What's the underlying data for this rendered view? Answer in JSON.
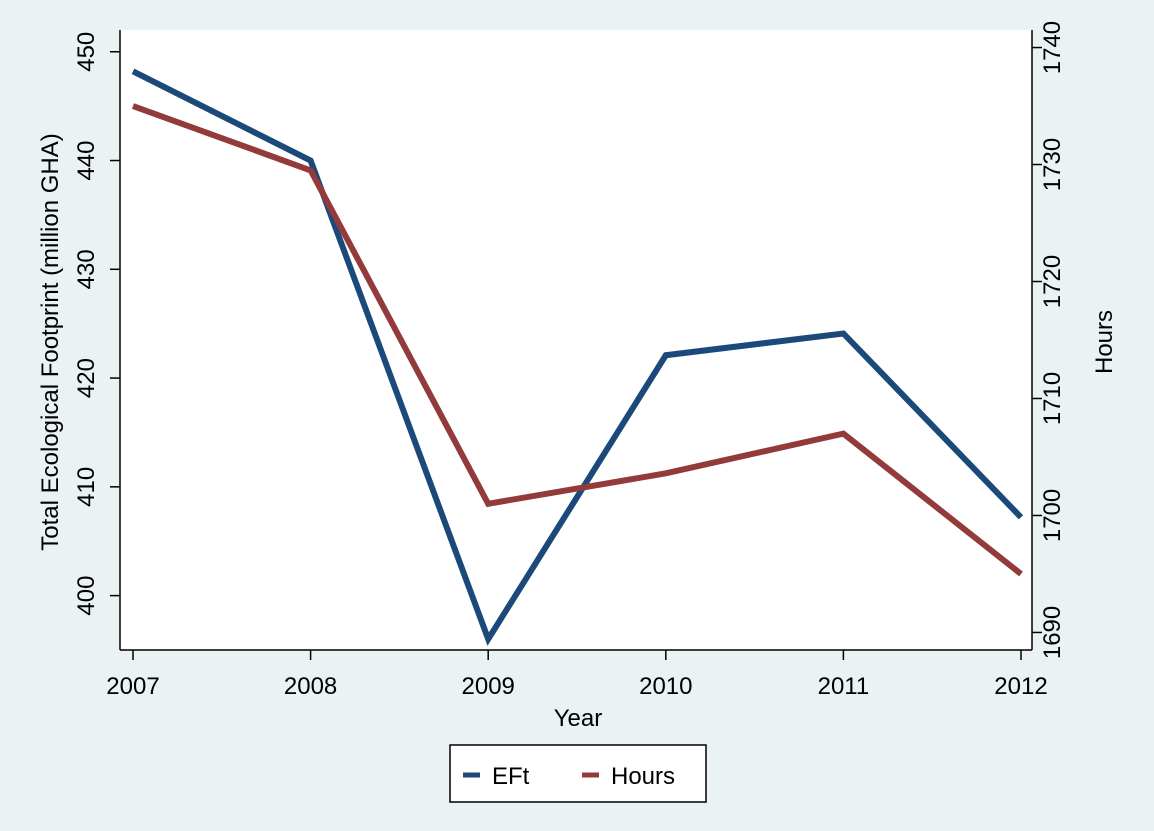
{
  "chart_data": {
    "type": "line",
    "x": [
      2007,
      2008,
      2009,
      2010,
      2011,
      2012
    ],
    "xlabel": "Year",
    "ylabel_left": "Total Ecological Footprint (million GHA)",
    "ylabel_right": "Hours",
    "xlim": [
      2007,
      2012
    ],
    "ylim_left": [
      395,
      452
    ],
    "ylim_right": [
      1688.5,
      1741.5
    ],
    "yticks_left": [
      400,
      410,
      420,
      430,
      440,
      450
    ],
    "yticks_right": [
      1690,
      1700,
      1710,
      1720,
      1730,
      1740
    ],
    "grid": false,
    "legend_position": "bottom",
    "series": [
      {
        "name": "EFt",
        "axis": "left",
        "color": "#1b4a7a",
        "values": [
          448.2,
          440.0,
          396.0,
          422.1,
          424.1,
          407.2
        ]
      },
      {
        "name": "Hours",
        "axis": "right",
        "color": "#933b3b",
        "values": [
          1735.0,
          1729.5,
          1701.0,
          1703.6,
          1707.0,
          1695.0
        ]
      }
    ]
  }
}
